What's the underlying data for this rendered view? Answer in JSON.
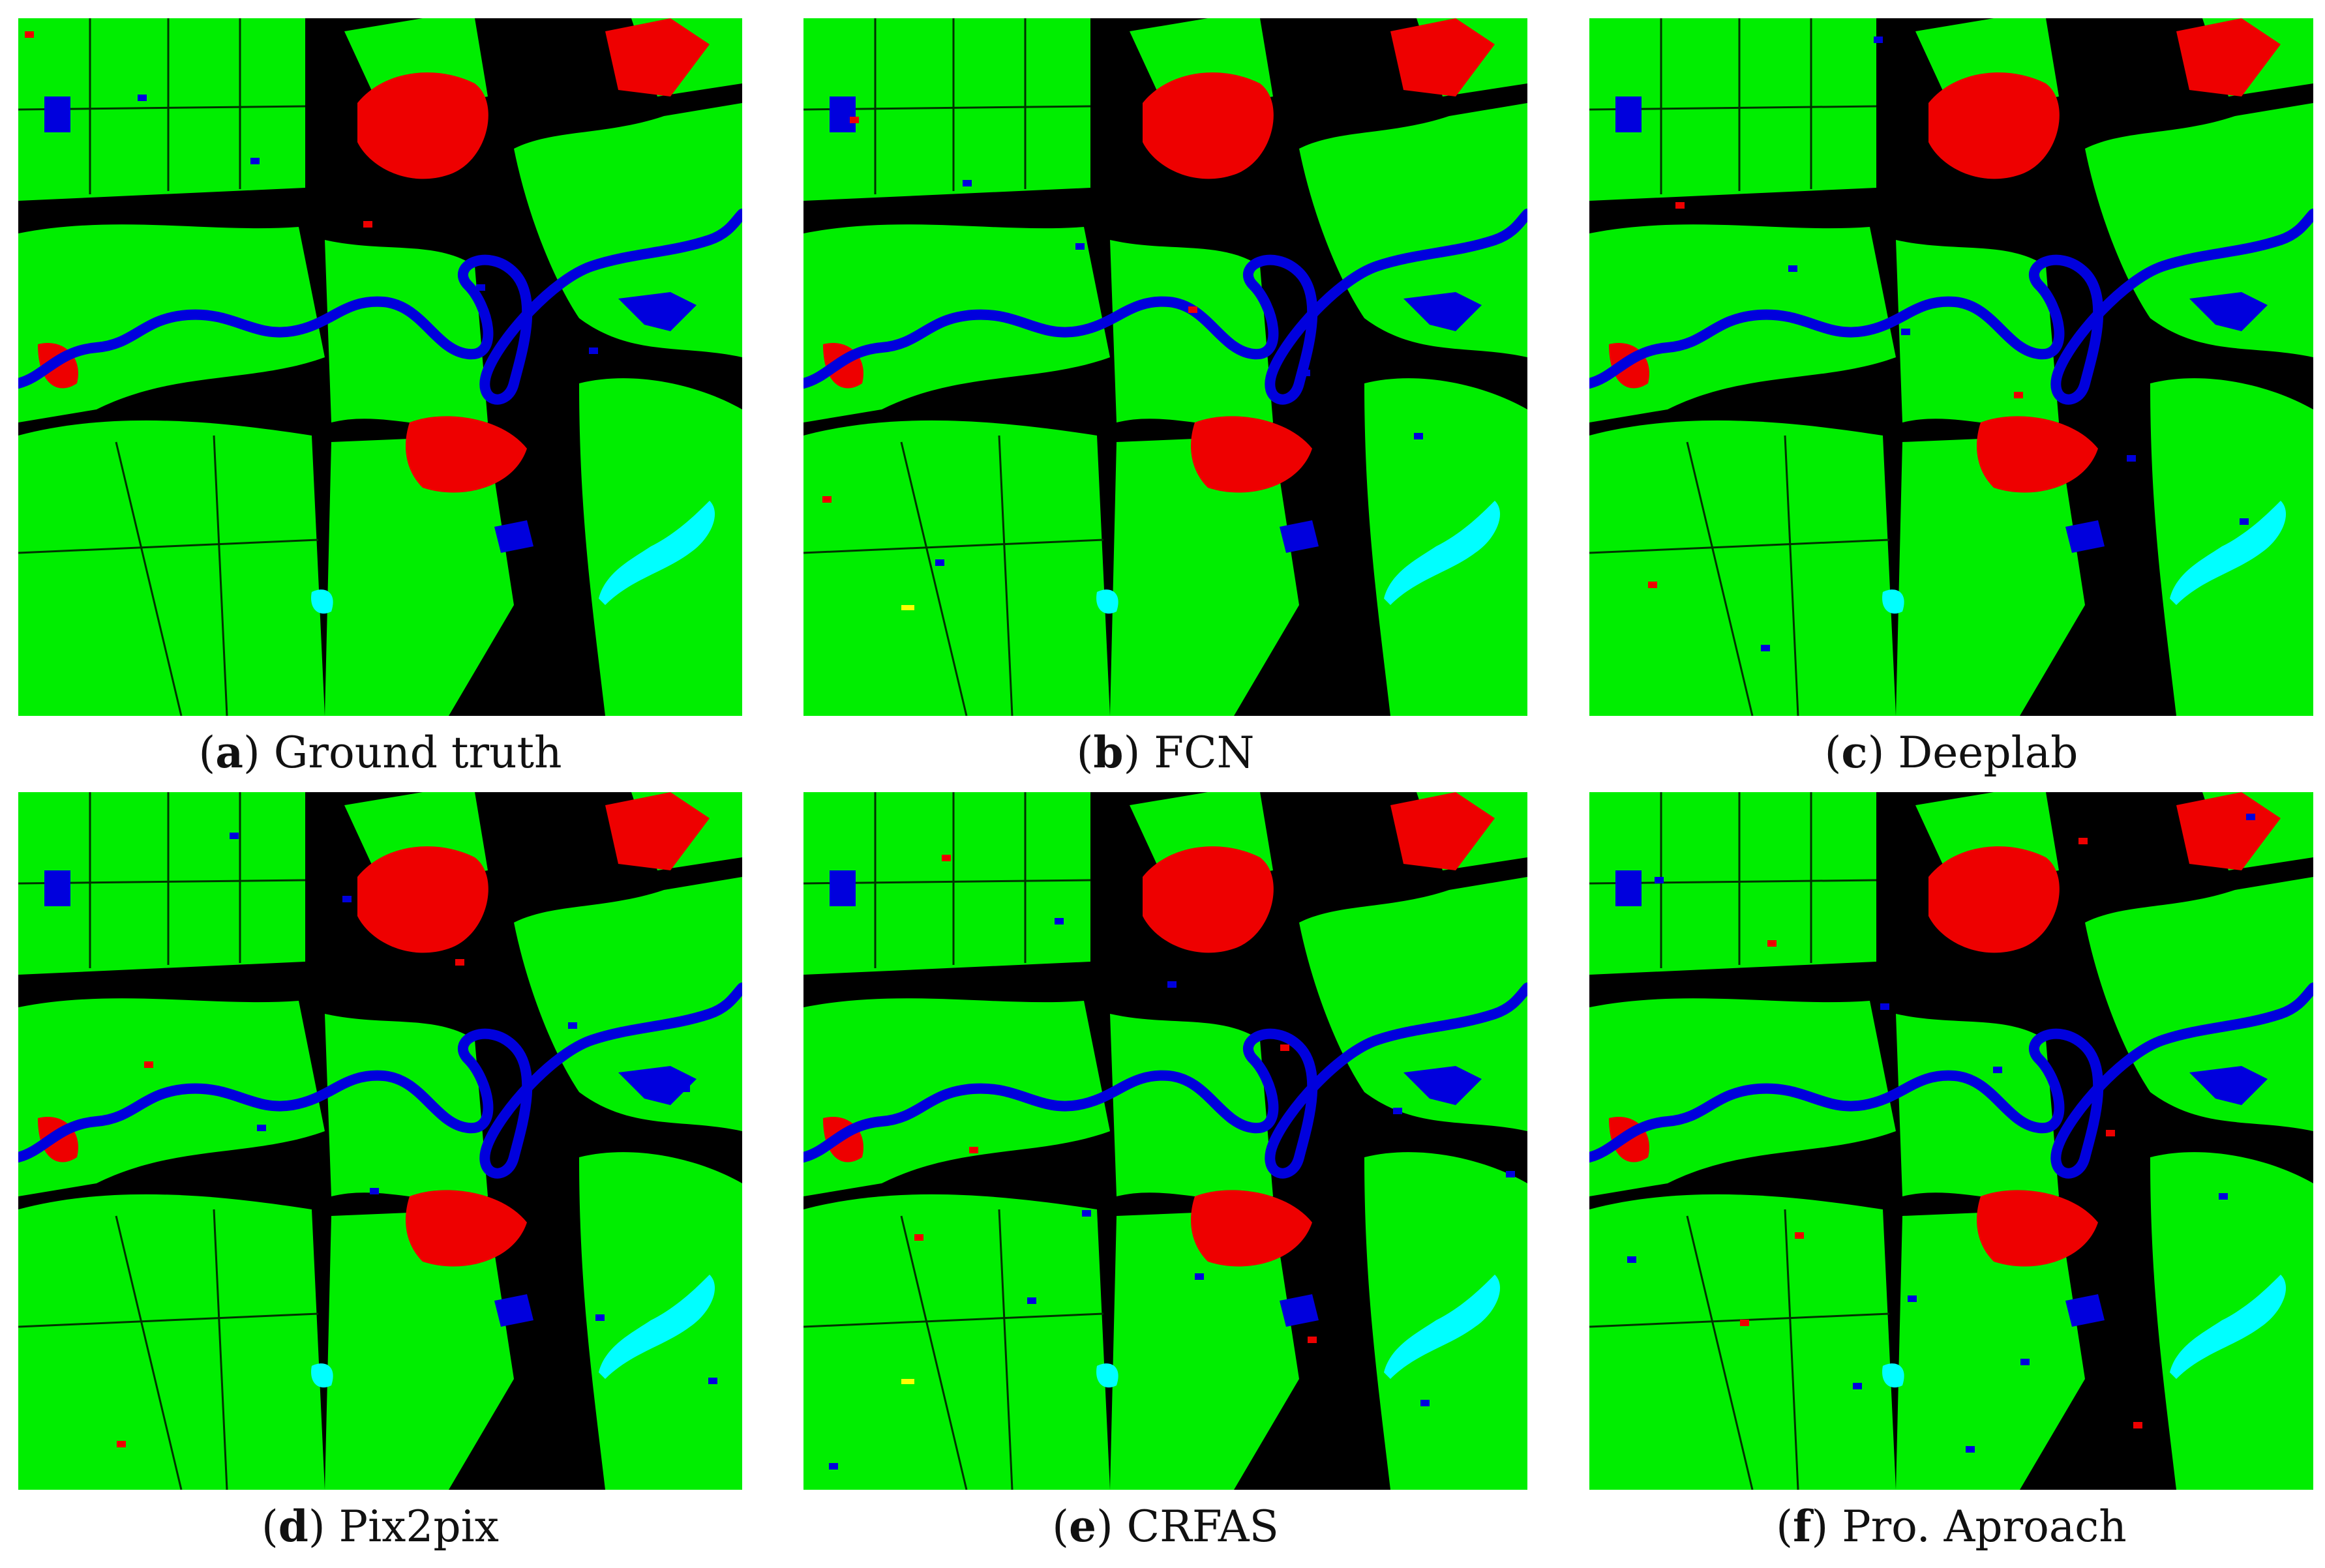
{
  "colors": {
    "background": "#000000",
    "vegetation": "#00ee00",
    "urban": "#ee0000",
    "water": "#0000dd",
    "lake": "#00ffff",
    "misc": "#ffff00"
  },
  "panels": [
    {
      "key": "a",
      "name": "Ground truth"
    },
    {
      "key": "b",
      "name": "FCN"
    },
    {
      "key": "c",
      "name": "Deeplab"
    },
    {
      "key": "d",
      "name": "Pix2pix"
    },
    {
      "key": "e",
      "name": "CRFAS"
    },
    {
      "key": "f",
      "name": "Pro. Aproach"
    }
  ]
}
